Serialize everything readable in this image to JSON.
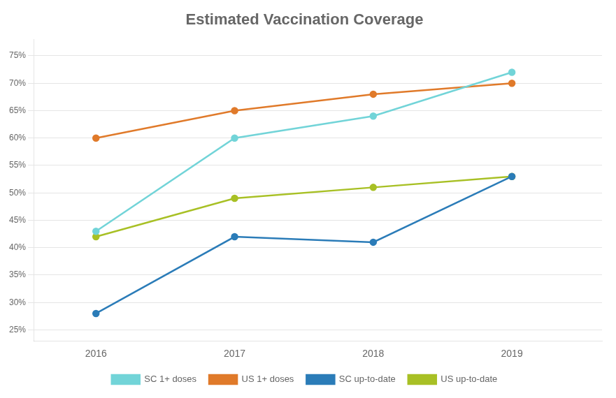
{
  "chart_data": {
    "type": "line",
    "title": "Estimated Vaccination Coverage",
    "x": [
      2016,
      2017,
      2018,
      2019
    ],
    "xlim": [
      2015.55,
      2019.65
    ],
    "xticks": [
      2016,
      2017,
      2018,
      2019
    ],
    "ylim": [
      23,
      78
    ],
    "yticks": [
      {
        "value": 25,
        "label": "25%"
      },
      {
        "value": 30,
        "label": "30%"
      },
      {
        "value": 35,
        "label": "35%"
      },
      {
        "value": 40,
        "label": "40%"
      },
      {
        "value": 45,
        "label": "45%"
      },
      {
        "value": 50,
        "label": "50%"
      },
      {
        "value": 55,
        "label": "55%"
      },
      {
        "value": 60,
        "label": "60%"
      },
      {
        "value": 65,
        "label": "65%"
      },
      {
        "value": 70,
        "label": "70%"
      },
      {
        "value": 75,
        "label": "75%"
      }
    ],
    "grid": "y",
    "legend": "bottom",
    "marker": "circle",
    "series": [
      {
        "name": "SC 1+ doses",
        "color": "#72d4d8",
        "values": [
          43,
          60,
          64,
          72
        ]
      },
      {
        "name": "US 1+ doses",
        "color": "#e07a2a",
        "values": [
          60,
          65,
          68,
          70
        ]
      },
      {
        "name": "SC up-to-date",
        "color": "#2b7cb8",
        "values": [
          28,
          42,
          41,
          53
        ]
      },
      {
        "name": "US up-to-date",
        "color": "#a8c025",
        "values": [
          42,
          49,
          51,
          53
        ]
      }
    ]
  }
}
